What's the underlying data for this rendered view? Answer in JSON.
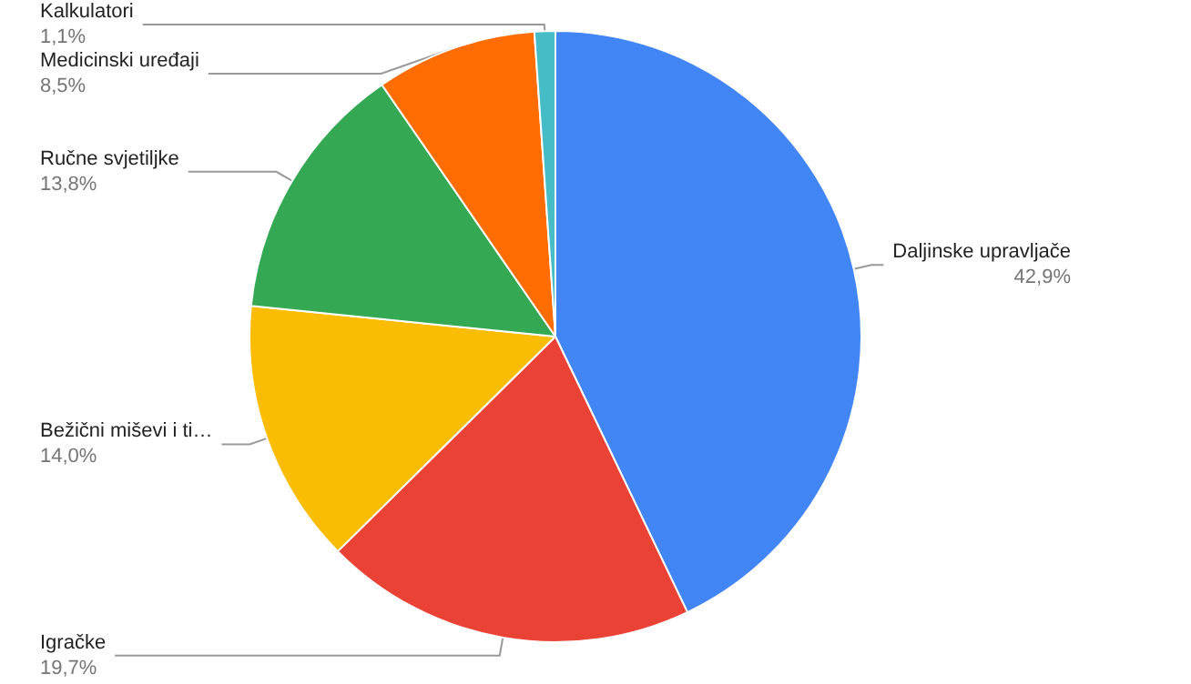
{
  "chart_data": {
    "type": "pie",
    "categories": [
      "Daljinske upravljače",
      "Igračke",
      "Bežični miševi i ti…",
      "Ručne svjetiljke",
      "Medicinski uređaji",
      "Kalkulatori"
    ],
    "values": [
      42.9,
      19.7,
      14.0,
      13.8,
      8.5,
      1.1
    ],
    "value_labels": [
      "42,9%",
      "19,7%",
      "14,0%",
      "13,8%",
      "8,5%",
      "1,1%"
    ],
    "colors": [
      "#4285f4",
      "#ea4335",
      "#fbbc04",
      "#34a853",
      "#ff6d01",
      "#46bdc6"
    ]
  }
}
